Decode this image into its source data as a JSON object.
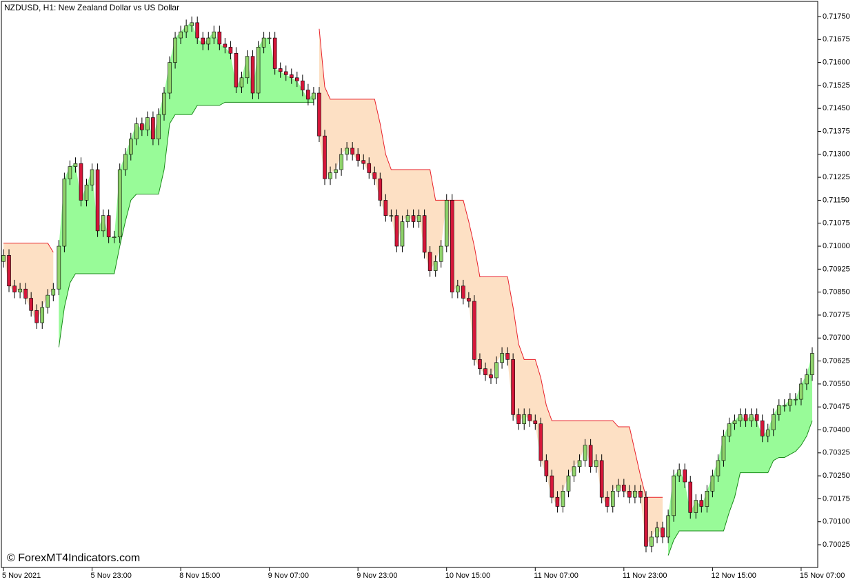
{
  "chart_data": {
    "type": "candlestick",
    "title": "NZDUSD, H1:  New Zealand Dollar vs US Dollar",
    "watermark": "© ForexMT4Indicators.com",
    "up_color": "#8fd36b",
    "down_color": "#d5173a",
    "wick_color": "#000000",
    "bull_fill": "#98fb98",
    "bear_fill": "#fde0c4",
    "bull_line": "#1a8a1a",
    "bear_line": "#e8202a",
    "ylim": [
      0.69953,
      0.71804
    ],
    "yticks": [
      {
        "value": 0.70025,
        "label": "0.70025"
      },
      {
        "value": 0.701,
        "label": "0.70100"
      },
      {
        "value": 0.70175,
        "label": "0.70175"
      },
      {
        "value": 0.7025,
        "label": "0.70250"
      },
      {
        "value": 0.70325,
        "label": "0.70325"
      },
      {
        "value": 0.704,
        "label": "0.70400"
      },
      {
        "value": 0.70475,
        "label": "0.70475"
      },
      {
        "value": 0.7055,
        "label": "0.70550"
      },
      {
        "value": 0.70625,
        "label": "0.70625"
      },
      {
        "value": 0.707,
        "label": "0.70700"
      },
      {
        "value": 0.70775,
        "label": "0.70775"
      },
      {
        "value": 0.7085,
        "label": "0.70850"
      },
      {
        "value": 0.70925,
        "label": "0.70925"
      },
      {
        "value": 0.71,
        "label": "0.71000"
      },
      {
        "value": 0.71075,
        "label": "0.71075"
      },
      {
        "value": 0.7115,
        "label": "0.71150"
      },
      {
        "value": 0.71225,
        "label": "0.71225"
      },
      {
        "value": 0.713,
        "label": "0.71300"
      },
      {
        "value": 0.71375,
        "label": "0.71375"
      },
      {
        "value": 0.7145,
        "label": "0.71450"
      },
      {
        "value": 0.71525,
        "label": "0.71525"
      },
      {
        "value": 0.716,
        "label": "0.71600"
      },
      {
        "value": 0.71675,
        "label": "0.71675"
      },
      {
        "value": 0.7175,
        "label": "0.71750"
      }
    ],
    "categories": [
      "5 Nov 2021",
      null,
      null,
      null,
      null,
      null,
      null,
      null,
      null,
      null,
      null,
      null,
      null,
      null,
      null,
      null,
      "5 Nov 23:00",
      null,
      null,
      null,
      null,
      null,
      null,
      null,
      null,
      null,
      null,
      null,
      null,
      null,
      null,
      null,
      "8 Nov 15:00",
      null,
      null,
      null,
      null,
      null,
      null,
      null,
      null,
      null,
      null,
      null,
      null,
      null,
      null,
      null,
      "9 Nov 07:00",
      null,
      null,
      null,
      null,
      null,
      null,
      null,
      null,
      null,
      null,
      null,
      null,
      null,
      null,
      null,
      "9 Nov 23:00",
      null,
      null,
      null,
      null,
      null,
      null,
      null,
      null,
      null,
      null,
      null,
      null,
      null,
      null,
      null,
      "10 Nov 15:00",
      null,
      null,
      null,
      null,
      null,
      null,
      null,
      null,
      null,
      null,
      null,
      null,
      null,
      null,
      null,
      "11 Nov 07:00",
      null,
      null,
      null,
      null,
      null,
      null,
      null,
      null,
      null,
      null,
      null,
      null,
      null,
      null,
      null,
      "11 Nov 23:00",
      null,
      null,
      null,
      null,
      null,
      null,
      null,
      null,
      null,
      null,
      null,
      null,
      null,
      null,
      null,
      "12 Nov 15:00",
      null,
      null,
      null,
      null,
      null,
      null,
      null,
      null,
      null,
      null,
      null,
      null,
      null,
      null,
      null,
      "15 Nov 07:00",
      null,
      null
    ],
    "open": [
      0.7095,
      0.7097,
      0.7087,
      0.7085,
      0.7086,
      0.7083,
      0.7079,
      0.7075,
      0.708,
      0.7084,
      0.7086,
      0.71,
      0.7122,
      0.7126,
      0.7127,
      0.7115,
      0.712,
      0.7125,
      0.7105,
      0.711,
      0.7103,
      0.7103,
      0.7125,
      0.713,
      0.7135,
      0.714,
      0.7138,
      0.7142,
      0.7135,
      0.7143,
      0.715,
      0.716,
      0.7168,
      0.717,
      0.7172,
      0.7173,
      0.7168,
      0.7166,
      0.7168,
      0.717,
      0.7166,
      0.7165,
      0.7163,
      0.7152,
      0.7155,
      0.7162,
      0.715,
      0.7165,
      0.7168,
      0.7168,
      0.7158,
      0.7157,
      0.7156,
      0.7155,
      0.7154,
      0.7151,
      0.7148,
      0.715,
      0.7136,
      0.7122,
      0.7124,
      0.7125,
      0.713,
      0.7132,
      0.713,
      0.7128,
      0.7127,
      0.7124,
      0.7122,
      0.7115,
      0.711,
      0.711,
      0.71,
      0.7108,
      0.711,
      0.7108,
      0.711,
      0.7098,
      0.7092,
      0.7095,
      0.71,
      0.7115,
      0.7085,
      0.7087,
      0.7083,
      0.7082,
      0.7063,
      0.706,
      0.7058,
      0.7057,
      0.7062,
      0.7065,
      0.7063,
      0.7045,
      0.7042,
      0.7045,
      0.7043,
      0.7042,
      0.703,
      0.7025,
      0.7018,
      0.7015,
      0.702,
      0.7025,
      0.7028,
      0.703,
      0.7035,
      0.7028,
      0.703,
      0.7018,
      0.7015,
      0.702,
      0.7022,
      0.702,
      0.7018,
      0.702,
      0.7018,
      0.7002,
      0.7005,
      0.7008,
      0.7005,
      0.7012,
      0.7025,
      0.7027,
      0.7023,
      0.7013,
      0.7017,
      0.7015,
      0.702,
      0.7025,
      0.703,
      0.7038,
      0.7042,
      0.7043,
      0.7045,
      0.7043,
      0.7045,
      0.7043,
      0.7038,
      0.704,
      0.7045,
      0.7048,
      0.7048,
      0.705,
      0.705,
      0.7055,
      0.7058
    ],
    "high": [
      0.7099,
      0.7099,
      0.7089,
      0.7088,
      0.7088,
      0.7085,
      0.7081,
      0.7082,
      0.7086,
      0.7088,
      0.7102,
      0.7124,
      0.7128,
      0.7129,
      0.7129,
      0.7122,
      0.7127,
      0.7127,
      0.7112,
      0.7112,
      0.7105,
      0.7127,
      0.7132,
      0.7137,
      0.7142,
      0.7142,
      0.7144,
      0.7144,
      0.7145,
      0.7152,
      0.7162,
      0.717,
      0.7172,
      0.7174,
      0.7175,
      0.7175,
      0.717,
      0.717,
      0.7172,
      0.7172,
      0.7168,
      0.7167,
      0.7165,
      0.7157,
      0.7164,
      0.7164,
      0.7167,
      0.717,
      0.717,
      0.717,
      0.716,
      0.7159,
      0.7158,
      0.7157,
      0.7156,
      0.7153,
      0.7152,
      0.7152,
      0.7138,
      0.7126,
      0.7127,
      0.7132,
      0.7134,
      0.7134,
      0.7132,
      0.713,
      0.7129,
      0.7126,
      0.7124,
      0.7117,
      0.7112,
      0.7112,
      0.711,
      0.7112,
      0.7112,
      0.7112,
      0.7112,
      0.71,
      0.7097,
      0.7102,
      0.7117,
      0.7117,
      0.7089,
      0.7089,
      0.7085,
      0.7084,
      0.7065,
      0.7062,
      0.706,
      0.7064,
      0.7067,
      0.7067,
      0.7065,
      0.7047,
      0.7047,
      0.7047,
      0.7045,
      0.7044,
      0.7032,
      0.7027,
      0.702,
      0.7022,
      0.7027,
      0.703,
      0.7032,
      0.7037,
      0.7037,
      0.7032,
      0.7032,
      0.702,
      0.7022,
      0.7024,
      0.7024,
      0.7022,
      0.7022,
      0.7022,
      0.702,
      0.7007,
      0.701,
      0.701,
      0.7014,
      0.7027,
      0.7029,
      0.7029,
      0.7025,
      0.7019,
      0.7019,
      0.7022,
      0.7027,
      0.7032,
      0.704,
      0.7044,
      0.7045,
      0.7047,
      0.7047,
      0.7047,
      0.7047,
      0.7045,
      0.7042,
      0.7047,
      0.705,
      0.705,
      0.7052,
      0.7052,
      0.7057,
      0.706,
      0.7067
    ],
    "low": [
      0.7093,
      0.7085,
      0.7083,
      0.7083,
      0.7081,
      0.7077,
      0.7073,
      0.7073,
      0.7078,
      0.7082,
      0.7084,
      0.7098,
      0.712,
      0.7124,
      0.7113,
      0.7113,
      0.7118,
      0.7103,
      0.7103,
      0.7101,
      0.7101,
      0.7101,
      0.7123,
      0.7128,
      0.7133,
      0.7136,
      0.7136,
      0.7133,
      0.7133,
      0.7141,
      0.7148,
      0.7158,
      0.7166,
      0.7168,
      0.717,
      0.7166,
      0.7164,
      0.7164,
      0.7166,
      0.7164,
      0.7163,
      0.7161,
      0.715,
      0.715,
      0.7153,
      0.7148,
      0.7148,
      0.7163,
      0.7166,
      0.7156,
      0.7155,
      0.7154,
      0.7153,
      0.7152,
      0.7149,
      0.7146,
      0.7146,
      0.7134,
      0.712,
      0.712,
      0.7122,
      0.7123,
      0.7128,
      0.7128,
      0.7126,
      0.7125,
      0.7122,
      0.712,
      0.7113,
      0.7108,
      0.7108,
      0.7098,
      0.7098,
      0.7106,
      0.7106,
      0.7106,
      0.7096,
      0.709,
      0.709,
      0.7093,
      0.7098,
      0.7083,
      0.7083,
      0.7081,
      0.708,
      0.7061,
      0.7058,
      0.7056,
      0.7055,
      0.7055,
      0.706,
      0.7061,
      0.7043,
      0.704,
      0.704,
      0.7041,
      0.704,
      0.7028,
      0.7023,
      0.7016,
      0.7013,
      0.7013,
      0.7018,
      0.7023,
      0.7026,
      0.7028,
      0.7026,
      0.7026,
      0.7016,
      0.7013,
      0.7013,
      0.7018,
      0.7018,
      0.7016,
      0.7016,
      0.7016,
      0.7,
      0.7,
      0.7003,
      0.7003,
      0.7003,
      0.701,
      0.7023,
      0.7021,
      0.7011,
      0.7011,
      0.7013,
      0.7013,
      0.7018,
      0.7023,
      0.7028,
      0.7036,
      0.704,
      0.7041,
      0.7041,
      0.7041,
      0.7041,
      0.7036,
      0.7036,
      0.7038,
      0.7043,
      0.7046,
      0.7046,
      0.7048,
      0.7048,
      0.7053,
      0.7056
    ],
    "close": [
      0.7097,
      0.7087,
      0.7085,
      0.7086,
      0.7083,
      0.7079,
      0.7075,
      0.708,
      0.7084,
      0.7086,
      0.71,
      0.7122,
      0.7126,
      0.7127,
      0.7115,
      0.712,
      0.7125,
      0.7105,
      0.711,
      0.7103,
      0.7103,
      0.7125,
      0.713,
      0.7135,
      0.714,
      0.7138,
      0.7142,
      0.7135,
      0.7143,
      0.715,
      0.716,
      0.7168,
      0.717,
      0.7172,
      0.7173,
      0.7168,
      0.7166,
      0.7168,
      0.717,
      0.7166,
      0.7165,
      0.7163,
      0.7152,
      0.7155,
      0.7162,
      0.715,
      0.7165,
      0.7168,
      0.7168,
      0.7158,
      0.7157,
      0.7156,
      0.7155,
      0.7154,
      0.7151,
      0.7148,
      0.715,
      0.7136,
      0.7122,
      0.7124,
      0.7125,
      0.713,
      0.7132,
      0.713,
      0.7128,
      0.7127,
      0.7124,
      0.7122,
      0.7115,
      0.711,
      0.711,
      0.71,
      0.7108,
      0.711,
      0.7108,
      0.711,
      0.7098,
      0.7092,
      0.7095,
      0.71,
      0.7115,
      0.7085,
      0.7087,
      0.7083,
      0.7082,
      0.7063,
      0.706,
      0.7058,
      0.7057,
      0.7062,
      0.7065,
      0.7063,
      0.7045,
      0.7042,
      0.7045,
      0.7043,
      0.7042,
      0.703,
      0.7025,
      0.7018,
      0.7015,
      0.702,
      0.7025,
      0.7028,
      0.703,
      0.7035,
      0.7028,
      0.703,
      0.7018,
      0.7015,
      0.702,
      0.7022,
      0.702,
      0.7018,
      0.702,
      0.7018,
      0.7002,
      0.7005,
      0.7008,
      0.7005,
      0.7012,
      0.7025,
      0.7027,
      0.7023,
      0.7013,
      0.7017,
      0.7015,
      0.702,
      0.7025,
      0.703,
      0.7038,
      0.7042,
      0.7043,
      0.7045,
      0.7043,
      0.7045,
      0.7043,
      0.7038,
      0.704,
      0.7045,
      0.7048,
      0.7048,
      0.705,
      0.705,
      0.7055,
      0.7058,
      0.7065
    ],
    "stop": [
      0.7101,
      0.7101,
      0.7101,
      0.7101,
      0.7101,
      0.7101,
      0.7101,
      0.7101,
      0.7101,
      0.7098,
      0.7067,
      0.708,
      0.7088,
      0.7091,
      0.7091,
      0.7091,
      0.7091,
      0.7091,
      0.7091,
      0.7091,
      0.7091,
      0.71,
      0.7108,
      0.7115,
      0.7117,
      0.7117,
      0.7117,
      0.7117,
      0.7117,
      0.7125,
      0.714,
      0.7143,
      0.7143,
      0.7143,
      0.7143,
      0.7146,
      0.7146,
      0.7146,
      0.7146,
      0.7146,
      0.7147,
      0.7147,
      0.7147,
      0.7147,
      0.7147,
      0.7147,
      0.7147,
      0.7147,
      0.7147,
      0.7147,
      0.7147,
      0.7147,
      0.7147,
      0.7147,
      0.7147,
      0.7147,
      0.7147,
      0.7171,
      0.7152,
      0.7148,
      0.7148,
      0.7148,
      0.7148,
      0.7148,
      0.7148,
      0.7148,
      0.7148,
      0.7148,
      0.714,
      0.713,
      0.7125,
      0.7125,
      0.7125,
      0.7125,
      0.7125,
      0.7125,
      0.7125,
      0.7125,
      0.7115,
      0.7115,
      0.7115,
      0.7115,
      0.7115,
      0.7115,
      0.7108,
      0.71,
      0.709,
      0.709,
      0.709,
      0.709,
      0.709,
      0.709,
      0.708,
      0.7068,
      0.7063,
      0.7063,
      0.7063,
      0.7057,
      0.7048,
      0.7043,
      0.7043,
      0.7043,
      0.7043,
      0.7043,
      0.7043,
      0.7043,
      0.7043,
      0.7043,
      0.7043,
      0.7043,
      0.7043,
      0.7041,
      0.7041,
      0.7041,
      0.7033,
      0.7025,
      0.7018,
      0.7018,
      0.7018,
      0.7018,
      0.6999,
      0.7004,
      0.7007,
      0.7007,
      0.7007,
      0.7007,
      0.7007,
      0.7007,
      0.7007,
      0.7007,
      0.7007,
      0.7013,
      0.7018,
      0.7026,
      0.7026,
      0.7026,
      0.7026,
      0.7026,
      0.7026,
      0.703,
      0.7031,
      0.7031,
      0.7032,
      0.7033,
      0.7035,
      0.7038,
      0.7043
    ]
  }
}
